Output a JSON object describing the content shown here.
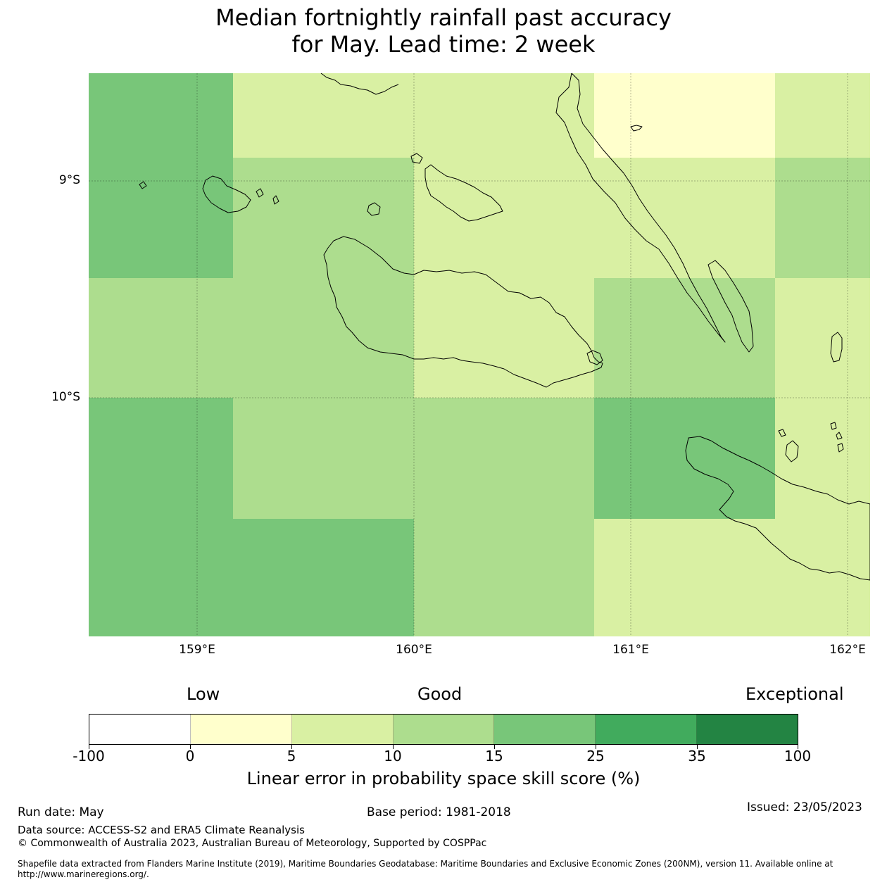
{
  "title": {
    "line1": "Median fortnightly rainfall past accuracy",
    "line2": "for May. Lead time: 2 week"
  },
  "map": {
    "lat_labels": [
      "9°S",
      "10°S"
    ],
    "lon_labels": [
      "159°E",
      "160°E",
      "161°E",
      "162°E"
    ],
    "colors": {
      "0-5": "#ffffcc",
      "5-10": "#d9f0a3",
      "10-15": "#addd8e",
      "15-25": "#78c679",
      "coastline": "#000000"
    }
  },
  "legend": {
    "category_low": "Low",
    "category_good": "Good",
    "category_exceptional": "Exceptional",
    "tick_labels": [
      "-100",
      "0",
      "5",
      "10",
      "15",
      "25",
      "35",
      "100"
    ],
    "segment_colors": [
      "#ffffff",
      "#ffffcc",
      "#d9f0a3",
      "#addd8e",
      "#78c679",
      "#41ab5d",
      "#238443"
    ],
    "label": "Linear error in probability space skill score (%)"
  },
  "footer": {
    "run_date": "Run date: May",
    "base_period": "Base period: 1981-2018",
    "issued": "Issued: 23/05/2023",
    "data_source": "Data source: ACCESS-S2 and ERA5 Climate Reanalysis",
    "copyright": "© Commonwealth of Australia 2023, Australian Bureau of Meteorology, Supported by COSPPac",
    "shapefile": "Shapefile data extracted from Flanders Marine Institute (2019), Maritime Boundaries Geodatabase: Maritime Boundaries and Exclusive Economic Zones (200NM), version 11. Available online at http://www.marineregions.org/."
  }
}
